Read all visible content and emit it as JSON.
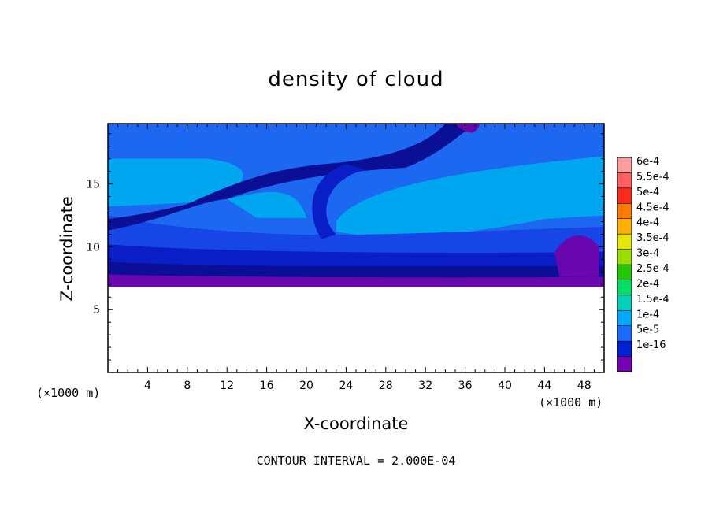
{
  "chart_data": {
    "type": "heatmap",
    "title": "density of cloud",
    "xlabel": "X-coordinate",
    "ylabel": "Z-coordinate",
    "x_unit_left": "(×1000 m)",
    "x_unit_right": "(×1000 m)",
    "footer": "CONTOUR INTERVAL = 2.000E-04",
    "xlim": [
      0,
      50
    ],
    "ylim": [
      0,
      19.8
    ],
    "x_ticks": [
      4,
      8,
      12,
      16,
      20,
      24,
      28,
      32,
      36,
      40,
      44,
      48
    ],
    "x_tick_labels": [
      "4",
      "8",
      "12",
      "16",
      "20",
      "24",
      "28",
      "32",
      "36",
      "40",
      "44",
      "48"
    ],
    "y_ticks": [
      5,
      10,
      15
    ],
    "y_tick_labels": [
      "5",
      "10",
      "15"
    ],
    "colorbar": {
      "labels": [
        "6e-4",
        "5.5e-4",
        "5e-4",
        "4.5e-4",
        "4e-4",
        "3.5e-4",
        "3e-4",
        "2.5e-4",
        "2e-4",
        "1.5e-4",
        "1e-4",
        "5e-5",
        "1e-16"
      ],
      "colors": [
        "#ff9e9e",
        "#ff6060",
        "#ff2a1a",
        "#ff7a00",
        "#ffb000",
        "#e6e600",
        "#9adf00",
        "#22c800",
        "#00e066",
        "#00d2bc",
        "#00aaff",
        "#1a6bff",
        "#0022d6",
        "#7a00b4"
      ]
    },
    "cloud_base_km": 7,
    "cloud_top_km": 19.8,
    "max_value_approx": "1.5e-4"
  }
}
